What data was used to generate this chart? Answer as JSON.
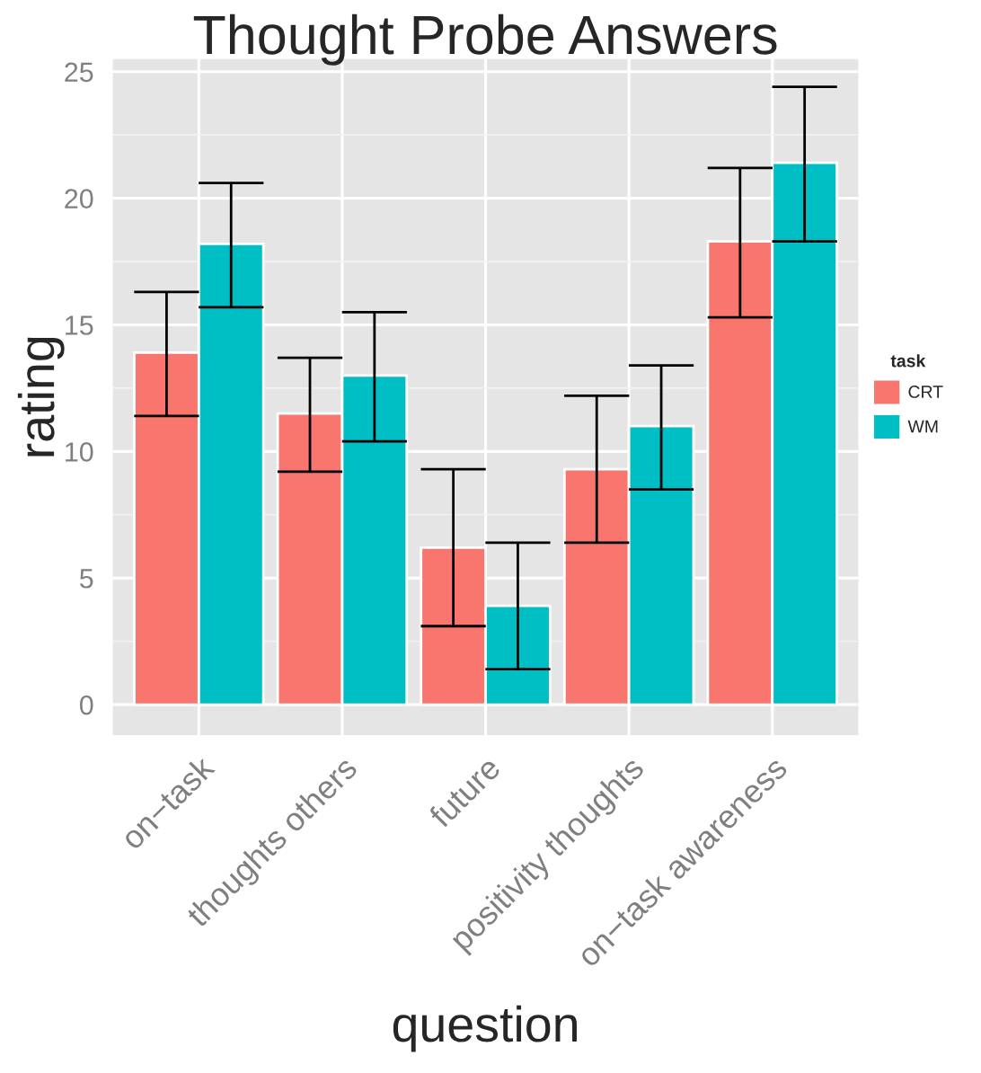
{
  "chart_data": {
    "type": "bar",
    "title": "Thought Probe Answers",
    "xlabel": "question",
    "ylabel": "rating",
    "legend_title": "task",
    "categories": [
      "on−task",
      "thoughts others",
      "future",
      "positivity thoughts",
      "on−task awareness"
    ],
    "series": [
      {
        "name": "CRT",
        "color": "#f8766d",
        "values": [
          13.9,
          11.5,
          6.2,
          9.3,
          18.3
        ],
        "errors": [
          [
            11.4,
            16.3
          ],
          [
            9.2,
            13.7
          ],
          [
            3.1,
            9.3
          ],
          [
            6.4,
            12.2
          ],
          [
            15.3,
            21.2
          ]
        ]
      },
      {
        "name": "WM",
        "color": "#00bfc4",
        "values": [
          18.2,
          13.0,
          3.9,
          11.0,
          21.4
        ],
        "errors": [
          [
            15.7,
            20.6
          ],
          [
            10.4,
            15.5
          ],
          [
            1.4,
            6.4
          ],
          [
            8.5,
            13.4
          ],
          [
            18.3,
            24.4
          ]
        ]
      }
    ],
    "ylim": [
      -1.2,
      25.5
    ],
    "yticks": [
      0,
      5,
      10,
      15,
      20,
      25
    ],
    "grid": true,
    "legend": "right"
  }
}
